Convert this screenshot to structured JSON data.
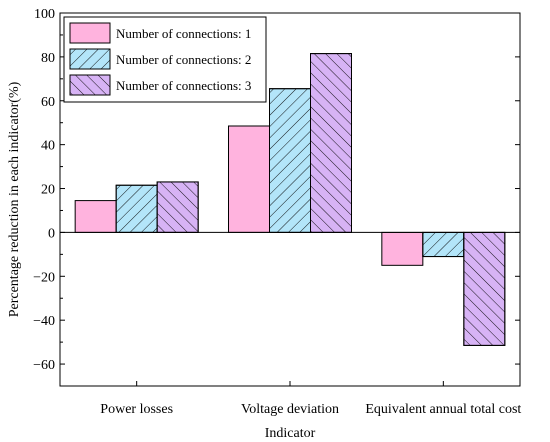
{
  "chart_data": {
    "type": "bar",
    "categories": [
      "Power losses",
      "Voltage deviation",
      "Equivalent annual total cost"
    ],
    "series": [
      {
        "name": "Number of connections: 1",
        "values": [
          14.5,
          48.5,
          -15
        ],
        "color": "#ffb3de",
        "pattern": "none"
      },
      {
        "name": "Number of connections: 2",
        "values": [
          21.5,
          65.5,
          -11
        ],
        "color": "#b3e5f9",
        "pattern": "diag-right"
      },
      {
        "name": "Number of connections: 3",
        "values": [
          23,
          81.5,
          -51.5
        ],
        "color": "#d7b3f5",
        "pattern": "diag-left"
      }
    ],
    "xlabel": "Indicator",
    "ylabel": "Percentage reduction in each indicator(%)",
    "ylim": [
      -70,
      100
    ],
    "yticks": [
      -60,
      -40,
      -20,
      0,
      20,
      40,
      60,
      80,
      100
    ],
    "legend": "top-left",
    "grid": false
  }
}
